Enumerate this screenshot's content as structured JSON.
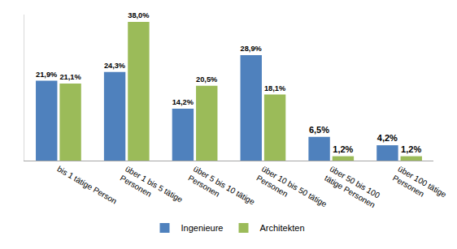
{
  "chart_data": {
    "type": "bar",
    "categories": [
      "bis 1 tätige Person",
      "über 1 bis 5 tätige Personen",
      "über 5 bis 10 tätige Personen",
      "über 10 bis 50 tätige Personen",
      "über 50 bis 100 tätige Personen",
      "über 100 tätige Personen"
    ],
    "series": [
      {
        "name": "Ingenieure",
        "color": "#4F81BD",
        "values": [
          21.9,
          24.3,
          14.2,
          28.9,
          6.5,
          4.2
        ],
        "value_labels": [
          "21,9%",
          "24,3%",
          "14,2%",
          "28,9%",
          "6,5%",
          "4,2%"
        ]
      },
      {
        "name": "Architekten",
        "color": "#9BBB59",
        "values": [
          21.1,
          38.0,
          20.5,
          18.1,
          1.2,
          1.2
        ],
        "value_labels": [
          "21,1%",
          "38,0%",
          "20,5%",
          "18,1%",
          "1,2%",
          "1,2%"
        ]
      }
    ],
    "ylim": [
      0,
      40
    ],
    "data_labels": true,
    "tick_labels": "x",
    "grid": false,
    "legend": "bottom"
  }
}
